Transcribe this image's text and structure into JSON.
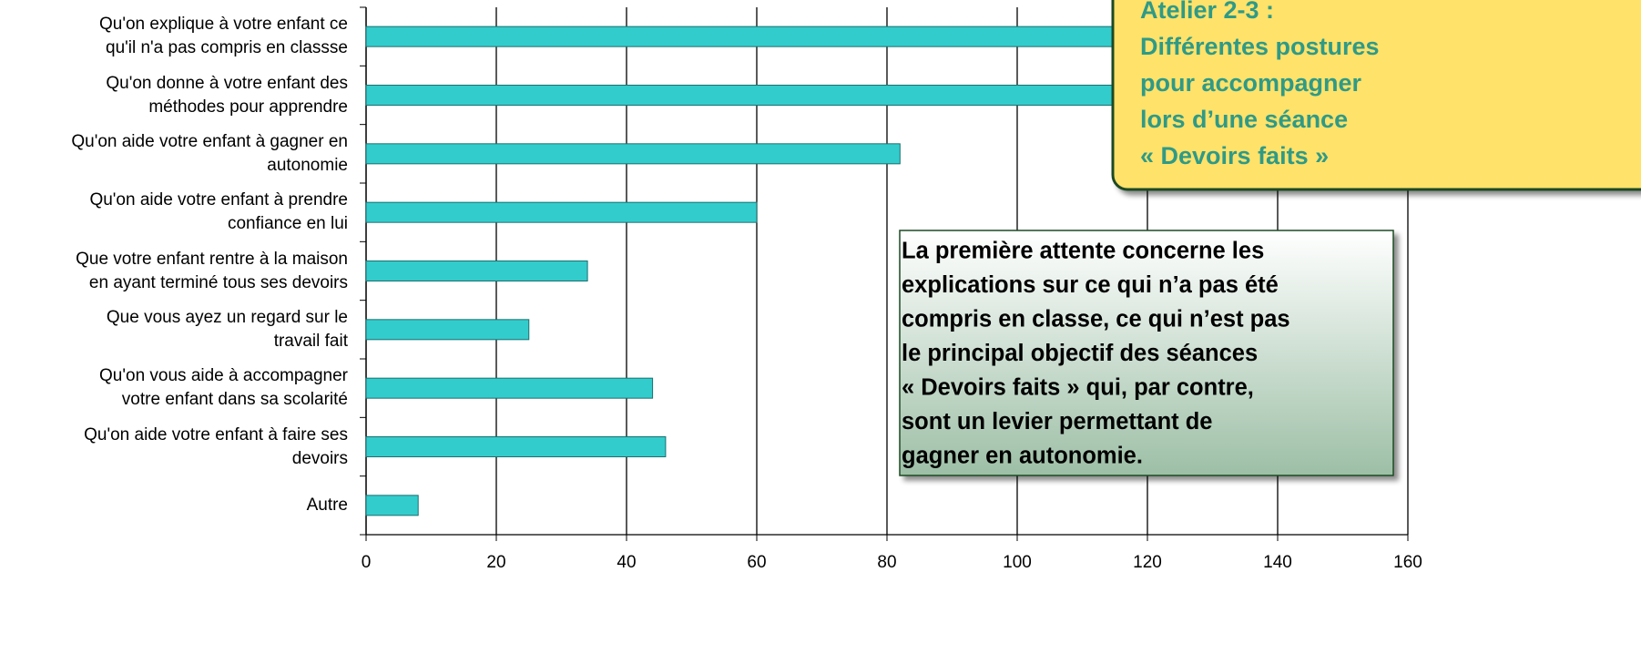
{
  "chart_data": {
    "type": "bar",
    "orientation": "horizontal",
    "categories": [
      "Qu'on explique à votre enfant ce\nqu'il n'a pas compris en classse",
      "Qu'on donne à votre enfant des\nméthodes pour apprendre",
      "Qu'on aide votre enfant à gagner en\nautonomie",
      "Qu'on aide votre enfant à prendre\nconfiance en lui",
      "Que votre enfant rentre à la maison\nen ayant terminé tous ses devoirs",
      "Que vous ayez un regard sur le\ntravail fait",
      "Qu'on vous aide à accompagner\nvotre enfant dans sa scolarité",
      "Qu'on aide votre enfant à faire ses\ndevoirs",
      "Autre"
    ],
    "values": [
      128,
      122,
      82,
      60,
      34,
      25,
      44,
      46,
      8
    ],
    "color": "#33cccc",
    "xlim": [
      0,
      160
    ],
    "xticks": [
      0,
      20,
      40,
      60,
      80,
      100,
      120,
      140,
      160
    ],
    "grid": true,
    "annotations": [
      {
        "lines": [
          "Atelier 2-3 :",
          "Différentes postures",
          "pour accompagner",
          "lors d’une séance",
          "« Devoirs faits »"
        ]
      },
      {
        "lines": [
          "La première attente concerne les",
          "explications sur ce qui n’a pas été",
          "compris en classe, ce qui n’est pas",
          "le principal objectif des séances",
          "« Devoirs faits » qui, par contre,",
          "sont un levier permettant de",
          "gagner en autonomie."
        ]
      }
    ]
  }
}
